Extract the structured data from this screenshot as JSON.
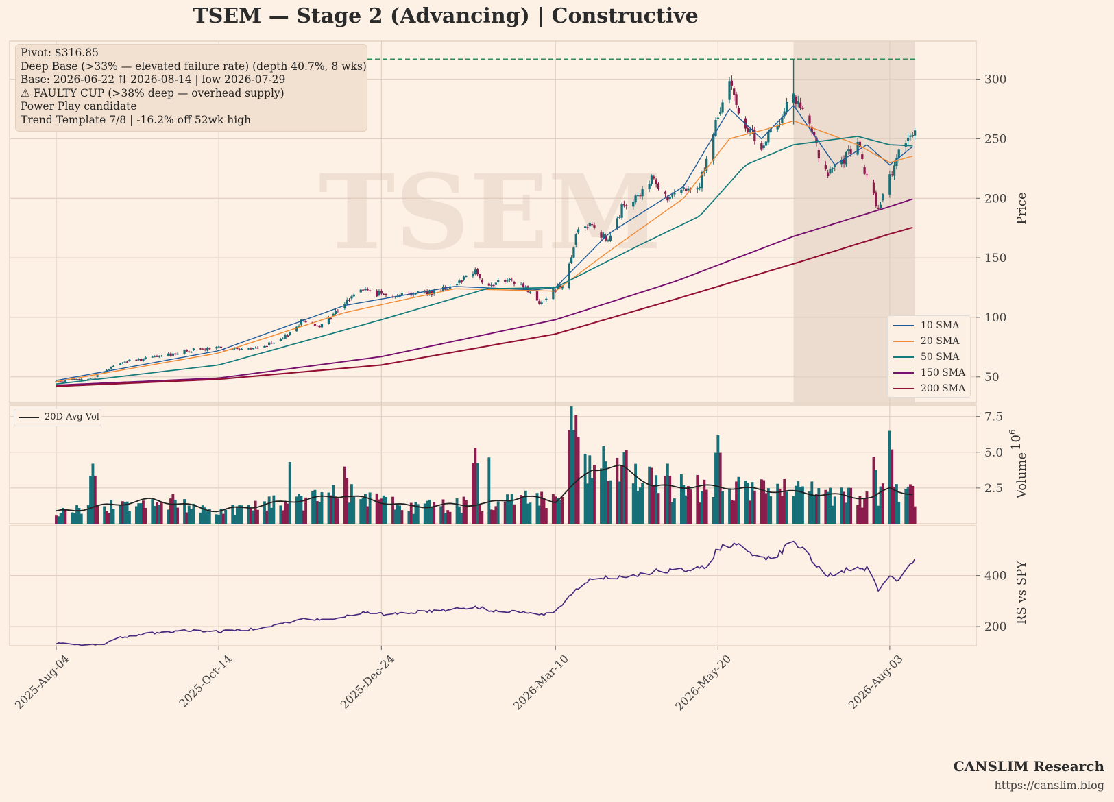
{
  "title": "TSEM  —  Stage 2 (Advancing)  |  Constructive",
  "annotations": [
    "Pivot: $316.85",
    "Deep Base (>33% — elevated failure rate)  (depth 40.7%, 8 wks)",
    "Base: 2026-06-22 ⇅ 2026-08-14  |  low 2026-07-29",
    "⚠ FAULTY CUP (>38% deep — overhead supply)",
    "Power Play candidate",
    "Trend Template 7/8  |  -16.2% off 52wk high"
  ],
  "watermark": "TSEM",
  "branding": {
    "name": "CANSLIM Research",
    "url": "https://canslim.blog"
  },
  "colors": {
    "background": "#fdf1e6",
    "up_candle": "#176f77",
    "down_candle": "#8c1c4c",
    "sma10": "#1f5c99",
    "sma20": "#f08a34",
    "sma50": "#137b7b",
    "sma150": "#760f6e",
    "sma200": "#931035",
    "pivot_line": "#2e8b57",
    "rs_line": "#4a2a80",
    "base_shade": "#e8d8ca"
  },
  "chart_data": [
    {
      "type": "candlestick",
      "panel": "price",
      "ylabel": "Price",
      "ylim": [
        28,
        332
      ],
      "yticks": [
        50,
        100,
        150,
        200,
        250,
        300
      ],
      "pivot": 316.85,
      "base_start": "2026-06-22",
      "base_end": "2026-08-14",
      "base_low_date": "2026-07-29",
      "x_start": "2025-08-04",
      "x_end": "2026-08-21",
      "x_ticks": [
        "2025-Aug-04",
        "2025-Oct-14",
        "2025-Dec-24",
        "2026-Mar-10",
        "2026-May-20",
        "2026-Aug-03"
      ],
      "close_keypoints": [
        [
          "2025-08-04",
          46
        ],
        [
          "2025-08-20",
          49
        ],
        [
          "2025-09-01",
          62
        ],
        [
          "2025-09-15",
          66
        ],
        [
          "2025-10-01",
          72
        ],
        [
          "2025-10-14",
          74
        ],
        [
          "2025-10-28",
          73
        ],
        [
          "2025-11-10",
          80
        ],
        [
          "2025-11-20",
          98
        ],
        [
          "2025-11-28",
          93
        ],
        [
          "2025-12-08",
          112
        ],
        [
          "2025-12-15",
          124
        ],
        [
          "2025-12-24",
          119
        ],
        [
          "2026-01-05",
          120
        ],
        [
          "2026-01-15",
          121
        ],
        [
          "2026-01-25",
          128
        ],
        [
          "2026-02-03",
          140
        ],
        [
          "2026-02-08",
          125
        ],
        [
          "2026-02-15",
          131
        ],
        [
          "2026-02-24",
          127
        ],
        [
          "2026-03-03",
          112
        ],
        [
          "2026-03-10",
          124
        ],
        [
          "2026-03-14",
          130
        ],
        [
          "2026-03-20",
          175
        ],
        [
          "2026-03-26",
          180
        ],
        [
          "2026-04-02",
          162
        ],
        [
          "2026-04-08",
          192
        ],
        [
          "2026-04-15",
          200
        ],
        [
          "2026-04-22",
          220
        ],
        [
          "2026-04-28",
          198
        ],
        [
          "2026-05-05",
          205
        ],
        [
          "2026-05-12",
          212
        ],
        [
          "2026-05-20",
          268
        ],
        [
          "2026-05-25",
          296
        ],
        [
          "2026-06-01",
          262
        ],
        [
          "2026-06-08",
          238
        ],
        [
          "2026-06-13",
          260
        ],
        [
          "2026-06-22",
          285
        ],
        [
          "2026-06-29",
          262
        ],
        [
          "2026-07-06",
          220
        ],
        [
          "2026-07-13",
          228
        ],
        [
          "2026-07-20",
          248
        ],
        [
          "2026-07-24",
          215
        ],
        [
          "2026-07-29",
          190
        ],
        [
          "2026-08-03",
          220
        ],
        [
          "2026-08-07",
          238
        ],
        [
          "2026-08-12",
          248
        ],
        [
          "2026-08-14",
          262
        ]
      ],
      "series": [
        {
          "name": "10 SMA",
          "keypoints": [
            [
              "2025-08-04",
              47
            ],
            [
              "2025-10-14",
              72
            ],
            [
              "2025-12-08",
              110
            ],
            [
              "2026-01-25",
              126
            ],
            [
              "2026-03-01",
              123
            ],
            [
              "2026-03-10",
              125
            ],
            [
              "2026-04-02",
              170
            ],
            [
              "2026-05-05",
              210
            ],
            [
              "2026-05-25",
              275
            ],
            [
              "2026-06-08",
              250
            ],
            [
              "2026-06-22",
              278
            ],
            [
              "2026-07-10",
              228
            ],
            [
              "2026-07-24",
              245
            ],
            [
              "2026-08-03",
              228
            ],
            [
              "2026-08-14",
              245
            ]
          ]
        },
        {
          "name": "20 SMA",
          "keypoints": [
            [
              "2025-08-04",
              46
            ],
            [
              "2025-10-14",
              70
            ],
            [
              "2025-12-08",
              104
            ],
            [
              "2026-01-25",
              124
            ],
            [
              "2026-03-10",
              122
            ],
            [
              "2026-04-02",
              155
            ],
            [
              "2026-05-05",
              200
            ],
            [
              "2026-05-25",
              250
            ],
            [
              "2026-06-10",
              258
            ],
            [
              "2026-06-22",
              265
            ],
            [
              "2026-07-20",
              245
            ],
            [
              "2026-08-03",
              230
            ],
            [
              "2026-08-14",
              236
            ]
          ]
        },
        {
          "name": "50 SMA",
          "keypoints": [
            [
              "2025-08-04",
              44
            ],
            [
              "2025-10-14",
              60
            ],
            [
              "2025-12-24",
              98
            ],
            [
              "2026-02-08",
              124
            ],
            [
              "2026-03-10",
              125
            ],
            [
              "2026-04-15",
              160
            ],
            [
              "2026-05-12",
              185
            ],
            [
              "2026-06-01",
              228
            ],
            [
              "2026-06-22",
              245
            ],
            [
              "2026-07-20",
              252
            ],
            [
              "2026-08-03",
              245
            ],
            [
              "2026-08-14",
              244
            ]
          ]
        },
        {
          "name": "150 SMA",
          "keypoints": [
            [
              "2025-08-04",
              43
            ],
            [
              "2025-10-14",
              49
            ],
            [
              "2025-12-24",
              67
            ],
            [
              "2026-03-10",
              98
            ],
            [
              "2026-05-01",
              130
            ],
            [
              "2026-06-22",
              168
            ],
            [
              "2026-08-03",
              193
            ],
            [
              "2026-08-14",
              200
            ]
          ]
        },
        {
          "name": "200 SMA",
          "keypoints": [
            [
              "2025-08-04",
              42
            ],
            [
              "2025-10-14",
              48
            ],
            [
              "2025-12-24",
              60
            ],
            [
              "2026-03-10",
              86
            ],
            [
              "2026-05-01",
              115
            ],
            [
              "2026-06-22",
              145
            ],
            [
              "2026-08-03",
              170
            ],
            [
              "2026-08-14",
              176
            ]
          ]
        }
      ]
    },
    {
      "type": "bar",
      "panel": "volume",
      "ylabel": "Volume",
      "yunit": "1e6",
      "ylim": [
        0,
        8.3
      ],
      "yticks": [
        2.5,
        5.0,
        7.5
      ],
      "ytick_labels": [
        "2.5",
        "5.0",
        "7.5"
      ],
      "multiplier_label": "10",
      "multiplier_exponent": "6",
      "avg_series_name": "20D Avg Vol",
      "spikes": [
        [
          "2025-08-20",
          4.2
        ],
        [
          "2025-11-15",
          5.4
        ],
        [
          "2025-12-08",
          4.0
        ],
        [
          "2026-02-03",
          5.3
        ],
        [
          "2026-02-08",
          5.8
        ],
        [
          "2026-03-17",
          8.2
        ],
        [
          "2026-03-19",
          7.6
        ],
        [
          "2026-04-28",
          4.2
        ],
        [
          "2026-05-20",
          6.2
        ],
        [
          "2026-07-27",
          4.7
        ],
        [
          "2026-08-03",
          6.5
        ]
      ],
      "avg_keypoints": [
        [
          "2025-08-04",
          0.8
        ],
        [
          "2025-09-15",
          1.7
        ],
        [
          "2025-10-14",
          0.9
        ],
        [
          "2025-11-15",
          1.6
        ],
        [
          "2025-12-08",
          2.0
        ],
        [
          "2026-01-05",
          1.2
        ],
        [
          "2026-02-08",
          1.4
        ],
        [
          "2026-02-24",
          1.9
        ],
        [
          "2026-03-10",
          1.6
        ],
        [
          "2026-03-26",
          3.8
        ],
        [
          "2026-04-08",
          4.0
        ],
        [
          "2026-04-22",
          2.6
        ],
        [
          "2026-05-20",
          2.6
        ],
        [
          "2026-06-22",
          2.2
        ],
        [
          "2026-07-27",
          1.8
        ],
        [
          "2026-08-03",
          2.5
        ],
        [
          "2026-08-14",
          2.0
        ]
      ]
    },
    {
      "type": "line",
      "panel": "rs",
      "series_name": "RS vs SPY",
      "ylabel": "RS vs SPY",
      "ylim": [
        125,
        595
      ],
      "yticks": [
        200,
        400
      ],
      "keypoints": [
        [
          "2025-08-04",
          135
        ],
        [
          "2025-08-15",
          127
        ],
        [
          "2025-08-25",
          133
        ],
        [
          "2025-09-01",
          157
        ],
        [
          "2025-09-15",
          175
        ],
        [
          "2025-10-01",
          185
        ],
        [
          "2025-10-14",
          180
        ],
        [
          "2025-10-28",
          190
        ],
        [
          "2025-11-10",
          210
        ],
        [
          "2025-11-20",
          230
        ],
        [
          "2025-12-01",
          225
        ],
        [
          "2025-12-15",
          255
        ],
        [
          "2025-12-24",
          248
        ],
        [
          "2026-01-05",
          255
        ],
        [
          "2026-01-20",
          265
        ],
        [
          "2026-02-03",
          278
        ],
        [
          "2026-02-10",
          260
        ],
        [
          "2026-02-20",
          262
        ],
        [
          "2026-03-03",
          245
        ],
        [
          "2026-03-10",
          255
        ],
        [
          "2026-03-17",
          330
        ],
        [
          "2026-03-26",
          390
        ],
        [
          "2026-04-08",
          395
        ],
        [
          "2026-04-22",
          415
        ],
        [
          "2026-05-05",
          420
        ],
        [
          "2026-05-15",
          430
        ],
        [
          "2026-05-20",
          510
        ],
        [
          "2026-05-28",
          520
        ],
        [
          "2026-06-08",
          470
        ],
        [
          "2026-06-15",
          480
        ],
        [
          "2026-06-22",
          540
        ],
        [
          "2026-06-29",
          470
        ],
        [
          "2026-07-06",
          400
        ],
        [
          "2026-07-15",
          420
        ],
        [
          "2026-07-24",
          430
        ],
        [
          "2026-07-29",
          345
        ],
        [
          "2026-08-03",
          390
        ],
        [
          "2026-08-07",
          375
        ],
        [
          "2026-08-11",
          440
        ],
        [
          "2026-08-14",
          465
        ]
      ]
    }
  ]
}
